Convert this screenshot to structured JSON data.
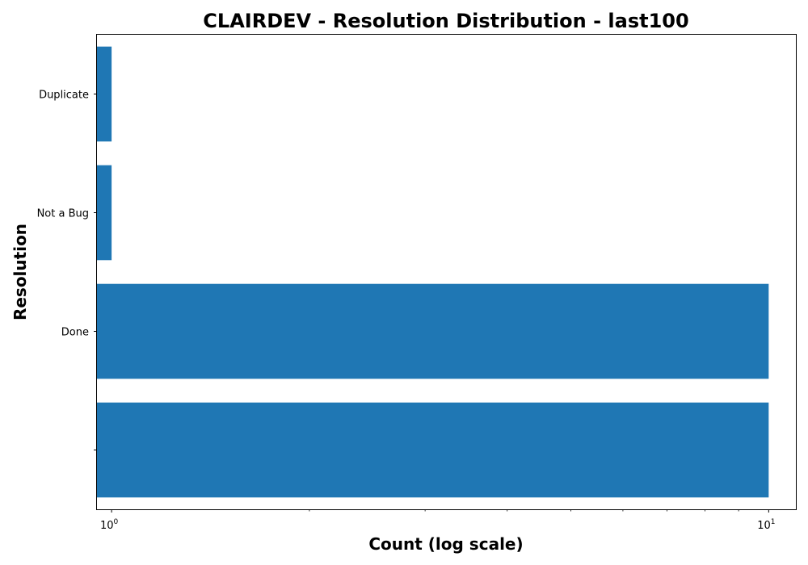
{
  "chart_data": {
    "type": "bar",
    "orientation": "horizontal",
    "title": "CLAIRDEV - Resolution Distribution - last100",
    "xlabel": "Count (log scale)",
    "ylabel": "Resolution",
    "x_scale": "log",
    "xlim": [
      0.95,
      11
    ],
    "categories": [
      "",
      "Done",
      "Not a Bug",
      "Duplicate"
    ],
    "values": [
      10,
      10,
      1,
      1
    ],
    "x_ticks": [
      {
        "base": "10",
        "exponent": "0",
        "value": 1
      },
      {
        "base": "10",
        "exponent": "1",
        "value": 10
      }
    ],
    "bar_color": "#1f77b4",
    "grid": false,
    "legend": "none"
  }
}
